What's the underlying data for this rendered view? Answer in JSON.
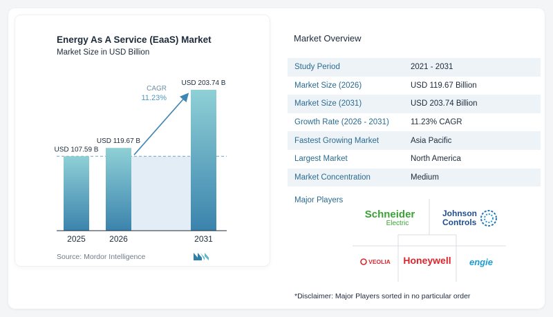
{
  "chart_data": {
    "type": "bar",
    "title": "Energy As A Service (EaaS) Market",
    "subtitle": "Market Size in USD Billion",
    "categories": [
      "2025",
      "2026",
      "2031"
    ],
    "values": [
      107.59,
      119.67,
      203.74
    ],
    "value_labels": [
      "USD 107.59 B",
      "USD 119.67 B",
      "USD 203.74 B"
    ],
    "cagr_label": "CAGR",
    "cagr_value": "11.23%",
    "ylim": [
      0,
      203.74
    ],
    "reference_line_value": 107.59,
    "bar_color": "#3b8fb0",
    "bar_color_top": "#8fd0d6",
    "bar_color_bottom": "#3b83ad"
  },
  "source": "Source:  Mordor Intelligence",
  "overview": {
    "title": "Market Overview",
    "rows": [
      {
        "key": "Study Period",
        "value": "2021 - 2031"
      },
      {
        "key": "Market Size (2026)",
        "value": "USD 119.67 Billion"
      },
      {
        "key": "Market Size (2031)",
        "value": "USD 203.74 Billion"
      },
      {
        "key": "Growth Rate (2026 - 2031)",
        "value": "11.23% CAGR"
      },
      {
        "key": "Fastest Growing Market",
        "value": "Asia Pacific"
      },
      {
        "key": "Largest Market",
        "value": "North America"
      },
      {
        "key": "Market Concentration",
        "value": "Medium"
      }
    ]
  },
  "players": {
    "label": "Major Players",
    "schneider_line1": "Schneider",
    "schneider_line2": "Electric",
    "johnson_line1": "Johnson",
    "johnson_line2": "Controls",
    "honeywell": "Honeywell",
    "veolia": "VEOLIA",
    "engie": "engie"
  },
  "disclaimer": "*Disclaimer: Major Players sorted in no particular order"
}
